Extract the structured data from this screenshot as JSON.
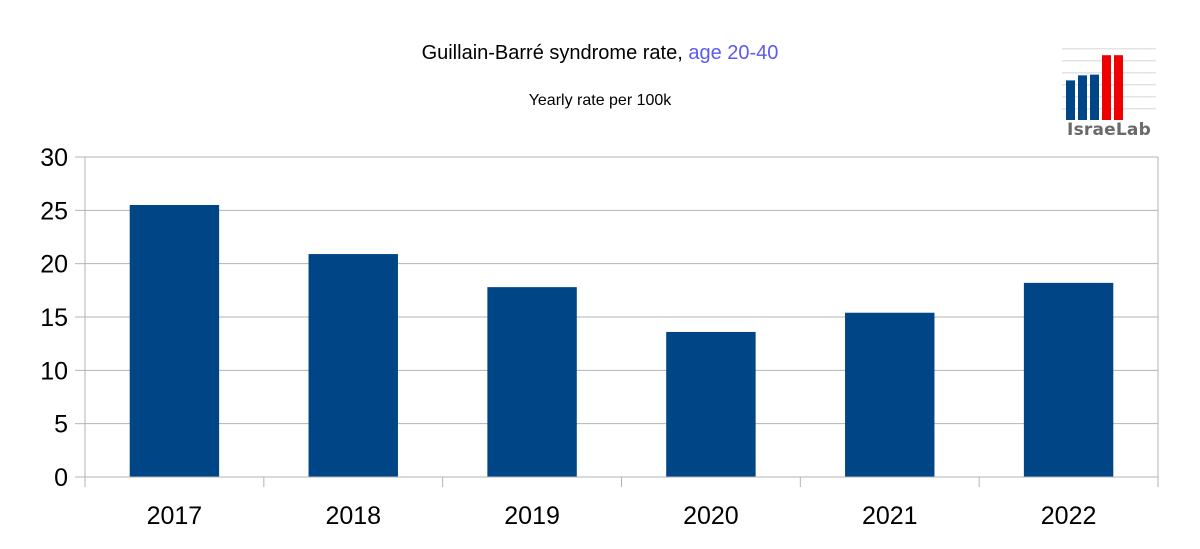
{
  "chart_data": {
    "type": "bar",
    "title": "Guillain-Barré syndrome rate,",
    "title_accent": "age 20-40",
    "subtitle": "Yearly rate per 100k",
    "xlabel": "",
    "ylabel": "",
    "categories": [
      "2017",
      "2018",
      "2019",
      "2020",
      "2021",
      "2022"
    ],
    "values": [
      25.5,
      20.9,
      17.8,
      13.6,
      15.4,
      18.2
    ],
    "ylim": [
      0,
      30
    ],
    "yticks": [
      0,
      5,
      10,
      15,
      20,
      25,
      30
    ],
    "grid": true,
    "bar_color": "#004586",
    "grid_color": "#b3b3b3"
  },
  "logo": {
    "text": "IsraeLab",
    "bar_colors": [
      "#004586",
      "#ee0000"
    ],
    "bar_values": [
      0.55,
      0.62,
      0.63,
      0.9,
      0.9
    ]
  }
}
